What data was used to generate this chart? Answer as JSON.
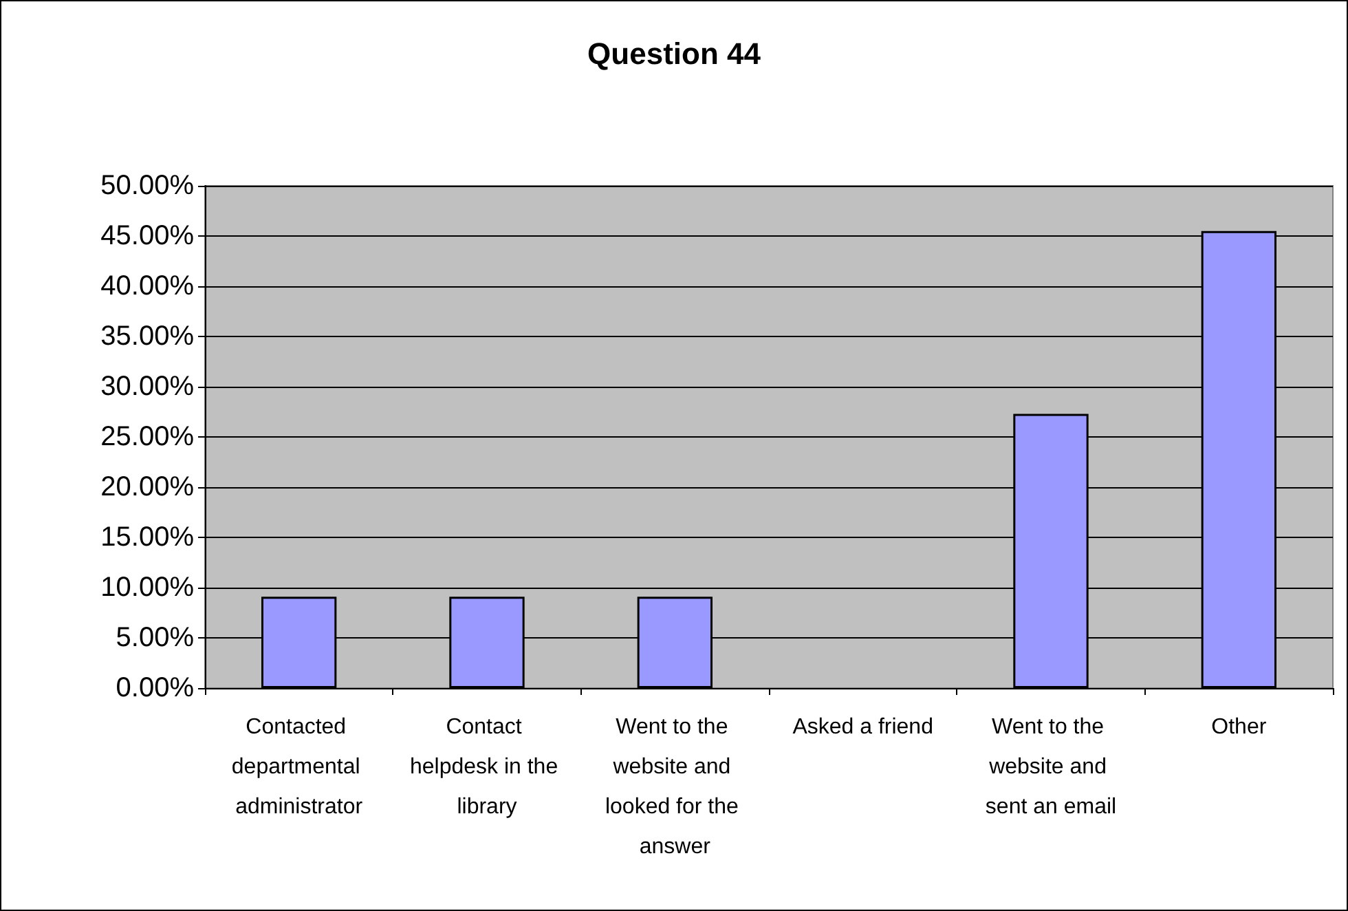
{
  "chart_data": {
    "type": "bar",
    "title": "Question 44",
    "categories": [
      "Contacted departmental administrator",
      "Contact helpdesk in the library",
      "Went to the website and looked for the answer",
      "Asked a friend",
      "Went to the website and sent an email",
      "Other"
    ],
    "values": [
      9.1,
      9.1,
      9.1,
      0,
      27.3,
      45.5
    ],
    "color": "#9999ff",
    "ylim": [
      0,
      50
    ],
    "yticks": [
      {
        "value": 0,
        "label": "0.00%"
      },
      {
        "value": 5,
        "label": "5.00%"
      },
      {
        "value": 10,
        "label": "10.00%"
      },
      {
        "value": 15,
        "label": "15.00%"
      },
      {
        "value": 20,
        "label": "20.00%"
      },
      {
        "value": 25,
        "label": "25.00%"
      },
      {
        "value": 30,
        "label": "30.00%"
      },
      {
        "value": 35,
        "label": "35.00%"
      },
      {
        "value": 40,
        "label": "40.00%"
      },
      {
        "value": 45,
        "label": "45.00%"
      },
      {
        "value": 50,
        "label": "50.00%"
      }
    ],
    "grid": "y"
  }
}
